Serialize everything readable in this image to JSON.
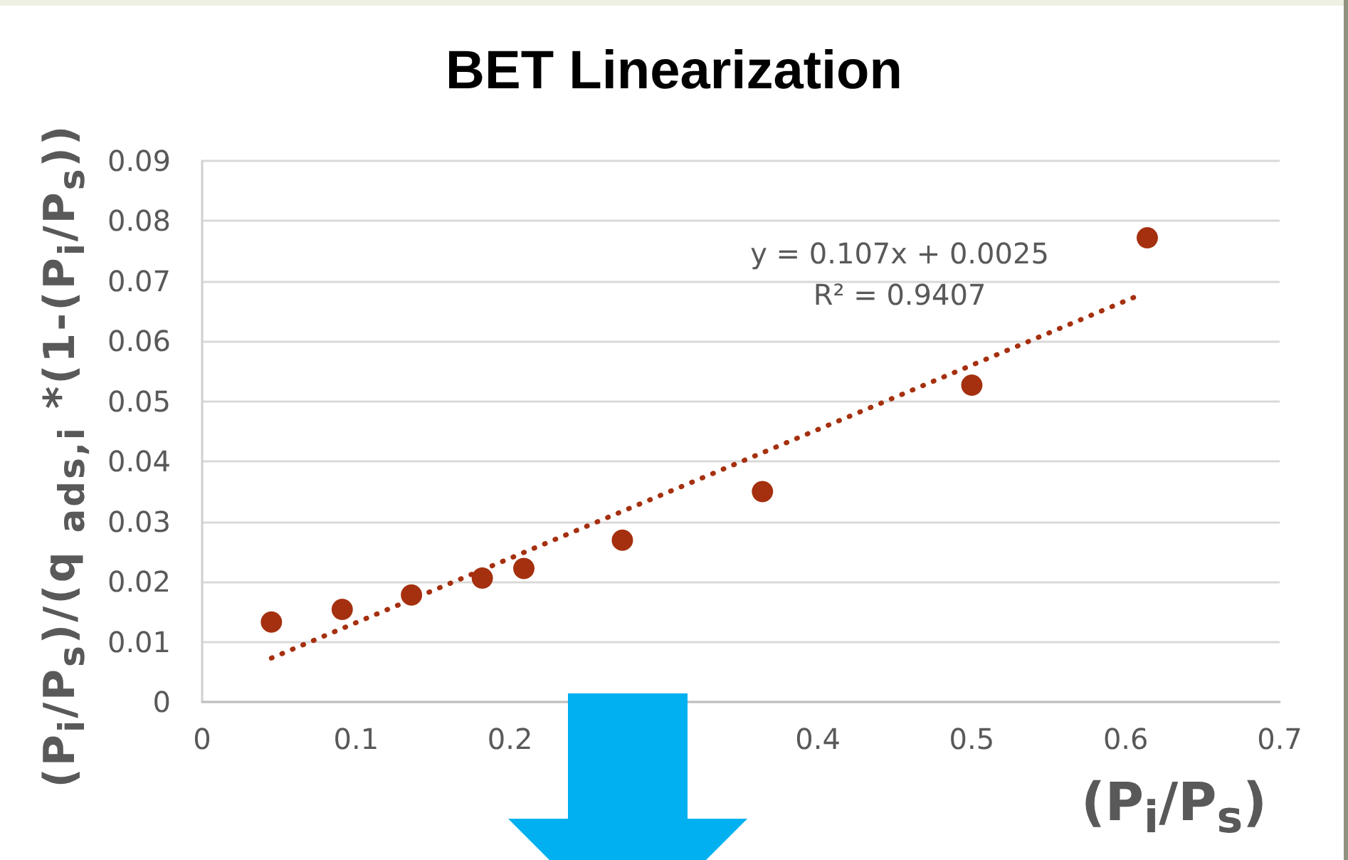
{
  "chart_data": {
    "type": "scatter",
    "title": "BET Linearization",
    "xlabel": "(P$_{i}$/P$_{s}$)",
    "ylabel": "(P$_{i}$/P$_{s}$)/(q $_{ads,i}$ *(1-(P$_{i}$/P$_{s}$))",
    "series": [
      {
        "type": "scatter",
        "x": [
          0.045,
          0.091,
          0.136,
          0.182,
          0.209,
          0.273,
          0.364,
          0.5,
          0.614
        ],
        "values": [
          0.0133,
          0.0154,
          0.0178,
          0.0206,
          0.0222,
          0.0269,
          0.035,
          0.0527,
          0.0772
        ],
        "color": "#a5300f",
        "marker": "circle"
      },
      {
        "type": "line",
        "x": [
          0.045,
          0.61
        ],
        "values": [
          0.0073,
          0.0678
        ],
        "color": "#a5300f",
        "marker": "none",
        "line_style": "dotted"
      }
    ],
    "xlim": [
      0,
      0.7
    ],
    "xticks": [
      0,
      0.1,
      0.2,
      0.4,
      0.5,
      0.6,
      0.7
    ],
    "ylim": [
      0,
      0.09
    ],
    "yticks": [
      0,
      0.01,
      0.02,
      0.03,
      0.04,
      0.05,
      0.06,
      0.07,
      0.08,
      0.09
    ],
    "grid": "y",
    "annotations": [
      "y = 0.107x + 0.0025",
      "R² = 0.9407"
    ]
  }
}
